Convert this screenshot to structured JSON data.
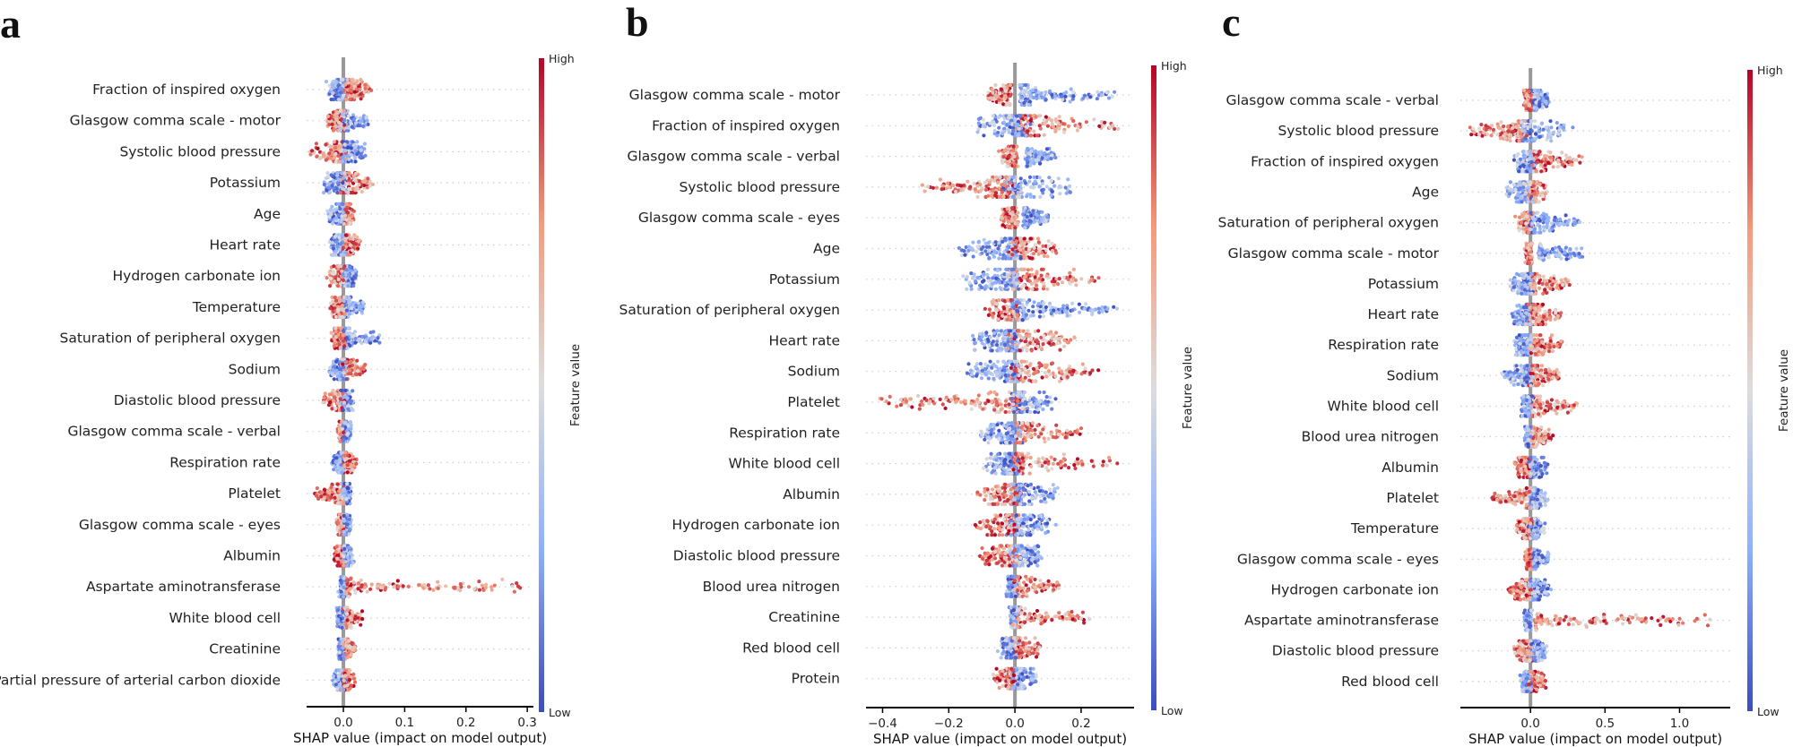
{
  "colors": {
    "low": "#3b4cc0",
    "mid": "#dddddd",
    "high": "#b40426",
    "zero_line": "#999999",
    "row_dots": "#cccccc",
    "text": "#222222"
  },
  "chart_data": [
    {
      "type": "scatter",
      "panel_label": "a",
      "title": "",
      "xlabel": "SHAP value (impact on model output)",
      "xlim": [
        -0.06,
        0.31
      ],
      "xticks": [
        0.0,
        0.1,
        0.2,
        0.3
      ],
      "xtick_labels": [
        "0.0",
        "0.1",
        "0.2",
        "0.3"
      ],
      "colorbar": {
        "label": "Feature value",
        "high": "High",
        "low": "Low"
      },
      "features": [
        {
          "name": "Fraction of inspired oxygen",
          "low_min": -0.025,
          "low_max": 0.0,
          "high_min": 0.005,
          "high_max": 0.045,
          "low_side": "left",
          "sigma": 0.008
        },
        {
          "name": "Glasgow comma scale - motor",
          "low_min": -0.005,
          "low_max": 0.04,
          "high_min": -0.025,
          "high_max": 0.0,
          "low_side": "right",
          "sigma": 0.006
        },
        {
          "name": "Systolic blood pressure",
          "low_min": 0.0,
          "low_max": 0.035,
          "high_min": -0.05,
          "high_max": 0.0,
          "low_side": "right",
          "sigma": 0.01
        },
        {
          "name": "Potassium",
          "low_min": -0.03,
          "low_max": 0.0,
          "high_min": 0.0,
          "high_max": 0.045,
          "low_side": "left",
          "sigma": 0.009
        },
        {
          "name": "Age",
          "low_min": -0.025,
          "low_max": 0.0,
          "high_min": 0.0,
          "high_max": 0.015,
          "low_side": "left",
          "sigma": 0.006
        },
        {
          "name": "Heart rate",
          "low_min": -0.02,
          "low_max": 0.0,
          "high_min": 0.0,
          "high_max": 0.025,
          "low_side": "left",
          "sigma": 0.006
        },
        {
          "name": "Hydrogen carbonate ion",
          "low_min": 0.0,
          "low_max": 0.022,
          "high_min": -0.025,
          "high_max": 0.0,
          "low_side": "right",
          "sigma": 0.006
        },
        {
          "name": "Temperature",
          "low_min": 0.0,
          "low_max": 0.035,
          "high_min": -0.02,
          "high_max": 0.0,
          "low_side": "right",
          "sigma": 0.005
        },
        {
          "name": "Saturation of peripheral oxygen",
          "low_min": 0.0,
          "low_max": 0.058,
          "high_min": -0.018,
          "high_max": 0.0,
          "low_side": "right",
          "sigma": 0.005
        },
        {
          "name": "Sodium",
          "low_min": -0.022,
          "low_max": 0.0,
          "high_min": 0.0,
          "high_max": 0.035,
          "low_side": "left",
          "sigma": 0.006
        },
        {
          "name": "Diastolic blood pressure",
          "low_min": 0.0,
          "low_max": 0.015,
          "high_min": -0.035,
          "high_max": 0.0,
          "low_side": "right",
          "sigma": 0.006
        },
        {
          "name": "Glasgow comma scale - verbal",
          "low_min": 0.0,
          "low_max": 0.012,
          "high_min": -0.008,
          "high_max": 0.0,
          "low_side": "right",
          "sigma": 0.003
        },
        {
          "name": "Respiration rate",
          "low_min": -0.018,
          "low_max": 0.0,
          "high_min": 0.0,
          "high_max": 0.02,
          "low_side": "left",
          "sigma": 0.005
        },
        {
          "name": "Platelet",
          "low_min": 0.0,
          "low_max": 0.012,
          "high_min": -0.045,
          "high_max": 0.0,
          "low_side": "right",
          "sigma": 0.005
        },
        {
          "name": "Glasgow comma scale - eyes",
          "low_min": 0.0,
          "low_max": 0.012,
          "high_min": -0.01,
          "high_max": 0.0,
          "low_side": "right",
          "sigma": 0.003
        },
        {
          "name": "Albumin",
          "low_min": 0.0,
          "low_max": 0.015,
          "high_min": -0.015,
          "high_max": 0.0,
          "low_side": "right",
          "sigma": 0.004
        },
        {
          "name": "Aspartate aminotransferase",
          "low_min": -0.005,
          "low_max": 0.0,
          "high_min": 0.005,
          "high_max": 0.295,
          "low_side": "left",
          "sigma": 0.004
        },
        {
          "name": "White blood cell",
          "low_min": -0.01,
          "low_max": 0.0,
          "high_min": 0.0,
          "high_max": 0.03,
          "low_side": "left",
          "sigma": 0.004
        },
        {
          "name": "Creatinine",
          "low_min": -0.008,
          "low_max": 0.0,
          "high_min": 0.0,
          "high_max": 0.02,
          "low_side": "left",
          "sigma": 0.003
        },
        {
          "name": "Partial pressure of arterial carbon dioxide",
          "low_min": -0.015,
          "low_max": 0.0,
          "high_min": 0.0,
          "high_max": 0.018,
          "low_side": "left",
          "sigma": 0.005
        }
      ]
    },
    {
      "type": "scatter",
      "panel_label": "b",
      "title": "",
      "xlabel": "SHAP value (impact on model output)",
      "xlim": [
        -0.45,
        0.36
      ],
      "xticks": [
        -0.4,
        -0.2,
        0.0,
        0.2
      ],
      "xtick_labels": [
        "−0.4",
        "−0.2",
        "0.0",
        "0.2"
      ],
      "colorbar": {
        "label": "Feature value",
        "high": "High",
        "low": "Low"
      },
      "features": [
        {
          "name": "Glasgow comma scale - motor",
          "low_min": 0.02,
          "low_max": 0.29,
          "high_min": -0.08,
          "high_max": -0.02,
          "low_side": "right",
          "sigma": 0.015
        },
        {
          "name": "Fraction of inspired oxygen",
          "low_min": -0.12,
          "low_max": 0.02,
          "high_min": 0.02,
          "high_max": 0.33,
          "low_side": "left",
          "sigma": 0.04
        },
        {
          "name": "Glasgow comma scale - verbal",
          "low_min": 0.04,
          "low_max": 0.12,
          "high_min": -0.04,
          "high_max": 0.0,
          "low_side": "right",
          "sigma": 0.012
        },
        {
          "name": "Systolic blood pressure",
          "low_min": -0.02,
          "low_max": 0.16,
          "high_min": -0.26,
          "high_max": -0.02,
          "low_side": "right",
          "sigma": 0.045
        },
        {
          "name": "Glasgow comma scale - eyes",
          "low_min": 0.03,
          "low_max": 0.1,
          "high_min": -0.04,
          "high_max": 0.0,
          "low_side": "right",
          "sigma": 0.012
        },
        {
          "name": "Age",
          "low_min": -0.17,
          "low_max": 0.0,
          "high_min": 0.0,
          "high_max": 0.12,
          "low_side": "left",
          "sigma": 0.035
        },
        {
          "name": "Potassium",
          "low_min": -0.15,
          "low_max": 0.0,
          "high_min": 0.0,
          "high_max": 0.25,
          "low_side": "left",
          "sigma": 0.04
        },
        {
          "name": "Saturation of peripheral oxygen",
          "low_min": 0.0,
          "low_max": 0.31,
          "high_min": -0.08,
          "high_max": 0.0,
          "low_side": "right",
          "sigma": 0.03
        },
        {
          "name": "Heart rate",
          "low_min": -0.12,
          "low_max": 0.0,
          "high_min": 0.0,
          "high_max": 0.18,
          "low_side": "left",
          "sigma": 0.035
        },
        {
          "name": "Sodium",
          "low_min": -0.14,
          "low_max": 0.0,
          "high_min": 0.0,
          "high_max": 0.25,
          "low_side": "left",
          "sigma": 0.035
        },
        {
          "name": "Platelet",
          "low_min": 0.0,
          "low_max": 0.1,
          "high_min": -0.41,
          "high_max": 0.0,
          "low_side": "right",
          "sigma": 0.03
        },
        {
          "name": "Respiration rate",
          "low_min": -0.1,
          "low_max": 0.0,
          "high_min": 0.0,
          "high_max": 0.2,
          "low_side": "left",
          "sigma": 0.03
        },
        {
          "name": "White blood cell",
          "low_min": -0.08,
          "low_max": 0.0,
          "high_min": 0.0,
          "high_max": 0.3,
          "low_side": "left",
          "sigma": 0.03
        },
        {
          "name": "Albumin",
          "low_min": 0.0,
          "low_max": 0.12,
          "high_min": -0.1,
          "high_max": 0.0,
          "low_side": "right",
          "sigma": 0.03
        },
        {
          "name": "Hydrogen carbonate ion",
          "low_min": 0.0,
          "low_max": 0.1,
          "high_min": -0.11,
          "high_max": 0.0,
          "low_side": "right",
          "sigma": 0.03
        },
        {
          "name": "Diastolic blood pressure",
          "low_min": 0.0,
          "low_max": 0.08,
          "high_min": -0.1,
          "high_max": 0.0,
          "low_side": "right",
          "sigma": 0.025
        },
        {
          "name": "Blood urea nitrogen",
          "low_min": -0.02,
          "low_max": 0.0,
          "high_min": 0.0,
          "high_max": 0.14,
          "low_side": "left",
          "sigma": 0.015
        },
        {
          "name": "Creatinine",
          "low_min": -0.01,
          "low_max": 0.0,
          "high_min": 0.0,
          "high_max": 0.23,
          "low_side": "left",
          "sigma": 0.012
        },
        {
          "name": "Red blood cell",
          "low_min": -0.04,
          "low_max": 0.0,
          "high_min": 0.0,
          "high_max": 0.07,
          "low_side": "left",
          "sigma": 0.015
        },
        {
          "name": "Protein",
          "low_min": 0.0,
          "low_max": 0.06,
          "high_min": -0.06,
          "high_max": 0.0,
          "low_side": "right",
          "sigma": 0.015
        }
      ]
    },
    {
      "type": "scatter",
      "panel_label": "c",
      "title": "",
      "xlabel": "SHAP value (impact on model output)",
      "xlim": [
        -0.47,
        1.34
      ],
      "xticks": [
        0.0,
        0.5,
        1.0
      ],
      "xtick_labels": [
        "0.0",
        "0.5",
        "1.0"
      ],
      "colorbar": {
        "label": "Feature value",
        "high": "High",
        "low": "Low"
      },
      "features": [
        {
          "name": "Glasgow comma scale - verbal",
          "low_min": 0.02,
          "low_max": 0.12,
          "high_min": -0.04,
          "high_max": 0.0,
          "low_side": "right",
          "sigma": 0.02
        },
        {
          "name": "Systolic blood pressure",
          "low_min": -0.05,
          "low_max": 0.24,
          "high_min": -0.4,
          "high_max": -0.05,
          "low_side": "right",
          "sigma": 0.06
        },
        {
          "name": "Fraction of inspired oxygen",
          "low_min": -0.1,
          "low_max": 0.02,
          "high_min": 0.02,
          "high_max": 0.33,
          "low_side": "left",
          "sigma": 0.04
        },
        {
          "name": "Age",
          "low_min": -0.17,
          "low_max": 0.0,
          "high_min": 0.0,
          "high_max": 0.1,
          "low_side": "left",
          "sigma": 0.035
        },
        {
          "name": "Saturation of peripheral oxygen",
          "low_min": 0.0,
          "low_max": 0.33,
          "high_min": -0.08,
          "high_max": 0.0,
          "low_side": "right",
          "sigma": 0.03
        },
        {
          "name": "Glasgow comma scale - motor",
          "low_min": 0.06,
          "low_max": 0.35,
          "high_min": -0.03,
          "high_max": 0.0,
          "low_side": "right",
          "sigma": 0.015
        },
        {
          "name": "Potassium",
          "low_min": -0.12,
          "low_max": 0.0,
          "high_min": 0.0,
          "high_max": 0.25,
          "low_side": "left",
          "sigma": 0.035
        },
        {
          "name": "Heart rate",
          "low_min": -0.12,
          "low_max": 0.0,
          "high_min": 0.0,
          "high_max": 0.2,
          "low_side": "left",
          "sigma": 0.035
        },
        {
          "name": "Respiration rate",
          "low_min": -0.1,
          "low_max": 0.0,
          "high_min": 0.0,
          "high_max": 0.2,
          "low_side": "left",
          "sigma": 0.035
        },
        {
          "name": "Sodium",
          "low_min": -0.18,
          "low_max": 0.0,
          "high_min": 0.0,
          "high_max": 0.2,
          "low_side": "left",
          "sigma": 0.035
        },
        {
          "name": "White blood cell",
          "low_min": -0.05,
          "low_max": 0.0,
          "high_min": 0.0,
          "high_max": 0.32,
          "low_side": "left",
          "sigma": 0.03
        },
        {
          "name": "Blood urea nitrogen",
          "low_min": -0.03,
          "low_max": 0.0,
          "high_min": 0.0,
          "high_max": 0.15,
          "low_side": "left",
          "sigma": 0.02
        },
        {
          "name": "Albumin",
          "low_min": 0.0,
          "low_max": 0.1,
          "high_min": -0.1,
          "high_max": 0.0,
          "low_side": "right",
          "sigma": 0.025
        },
        {
          "name": "Platelet",
          "low_min": 0.0,
          "low_max": 0.1,
          "high_min": -0.27,
          "high_max": 0.0,
          "low_side": "right",
          "sigma": 0.025
        },
        {
          "name": "Temperature",
          "low_min": 0.0,
          "low_max": 0.1,
          "high_min": -0.1,
          "high_max": 0.0,
          "low_side": "right",
          "sigma": 0.02
        },
        {
          "name": "Glasgow comma scale - eyes",
          "low_min": 0.02,
          "low_max": 0.12,
          "high_min": -0.03,
          "high_max": 0.0,
          "low_side": "right",
          "sigma": 0.015
        },
        {
          "name": "Hydrogen carbonate ion",
          "low_min": 0.0,
          "low_max": 0.12,
          "high_min": -0.14,
          "high_max": 0.0,
          "low_side": "right",
          "sigma": 0.025
        },
        {
          "name": "Aspartate aminotransferase",
          "low_min": -0.04,
          "low_max": 0.0,
          "high_min": 0.03,
          "high_max": 1.28,
          "low_side": "left",
          "sigma": 0.012
        },
        {
          "name": "Diastolic blood pressure",
          "low_min": 0.0,
          "low_max": 0.1,
          "high_min": -0.1,
          "high_max": 0.0,
          "low_side": "right",
          "sigma": 0.025
        },
        {
          "name": "Red blood cell",
          "low_min": -0.06,
          "low_max": 0.0,
          "high_min": 0.0,
          "high_max": 0.1,
          "low_side": "left",
          "sigma": 0.02
        }
      ]
    }
  ]
}
